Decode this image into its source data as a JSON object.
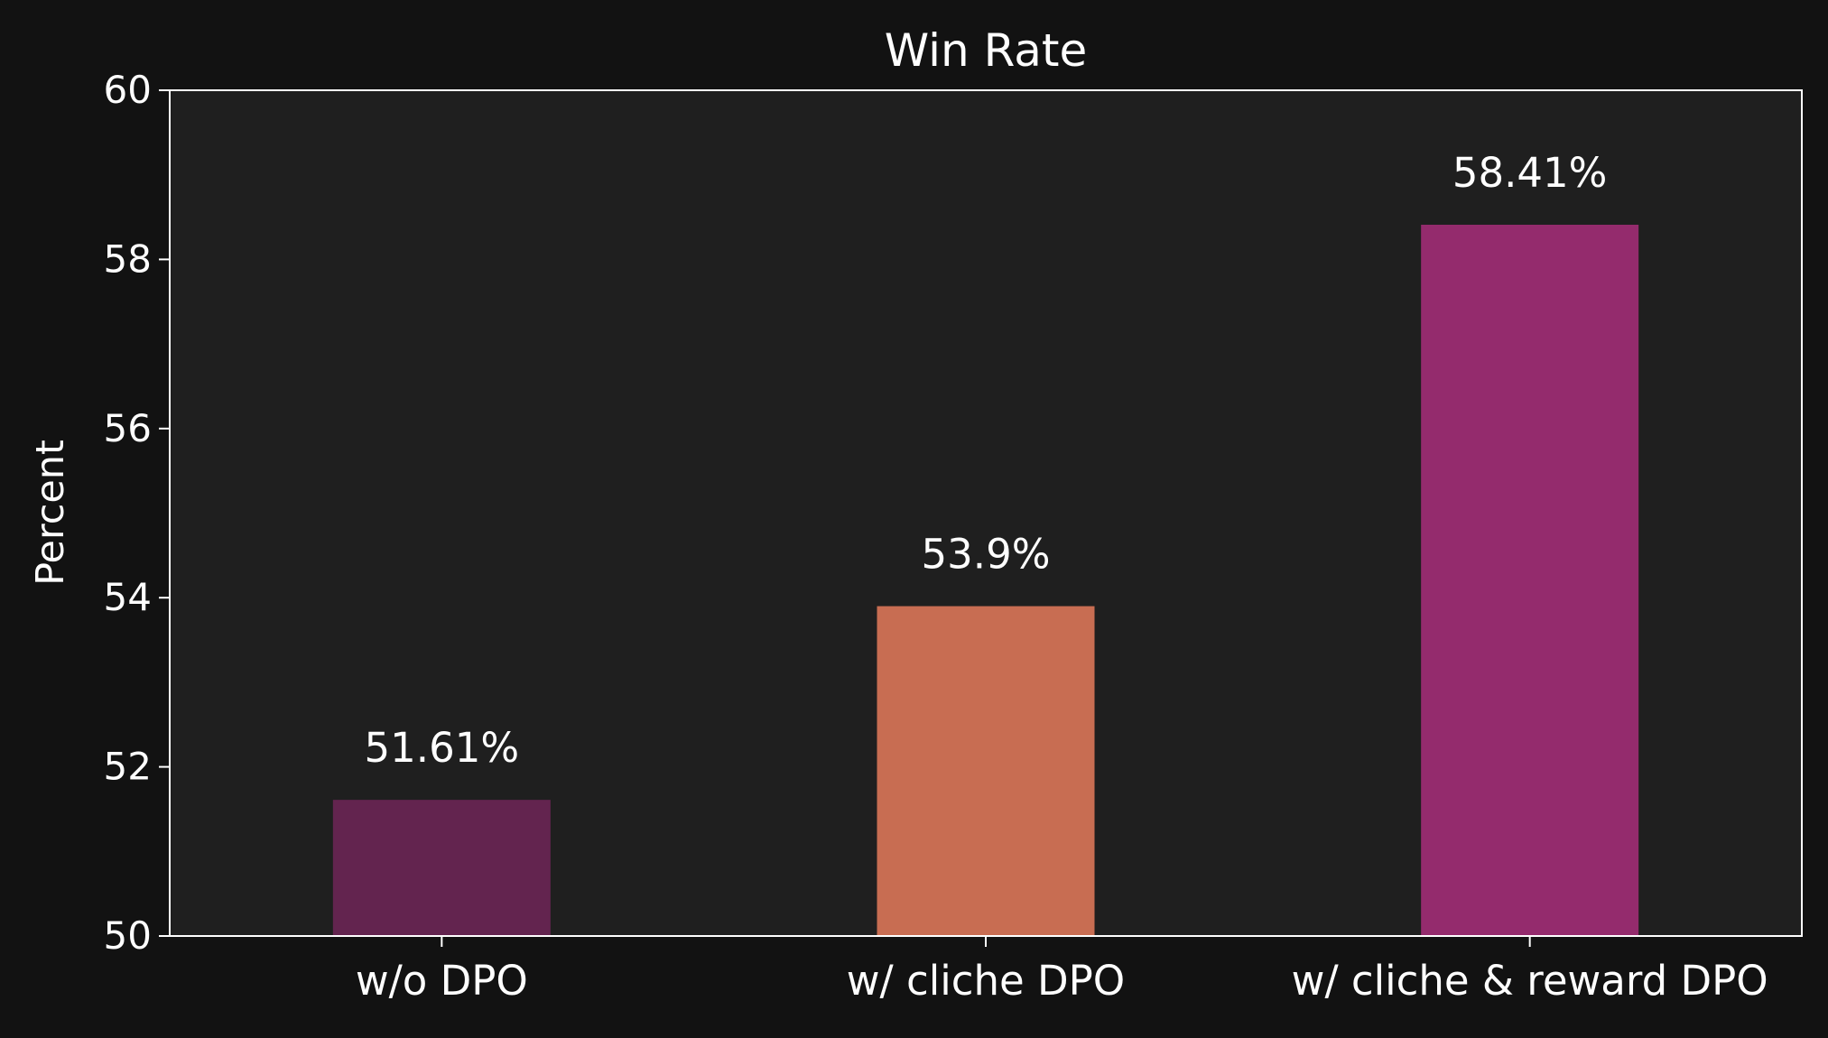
{
  "colors": {
    "page_background": "#121212",
    "plot_background": "#1f1f1f",
    "axis": "#ffffff",
    "text": "#ffffff"
  },
  "chart_data": {
    "type": "bar",
    "title": "Win Rate",
    "xlabel": "",
    "ylabel": "Percent",
    "ylim": [
      50,
      60
    ],
    "yticks": [
      50,
      52,
      54,
      56,
      58,
      60
    ],
    "ytick_labels": [
      "50",
      "52",
      "54",
      "56",
      "58",
      "60"
    ],
    "categories": [
      "w/o DPO",
      "w/ cliche DPO",
      "w/ cliche & reward DPO"
    ],
    "values": [
      51.61,
      53.9,
      58.41
    ],
    "value_labels": [
      "51.61%",
      "53.9%",
      "58.41%"
    ],
    "bar_colors": [
      "#63244f",
      "#c86d52",
      "#942b6d"
    ],
    "grid": false,
    "legend": "none"
  }
}
